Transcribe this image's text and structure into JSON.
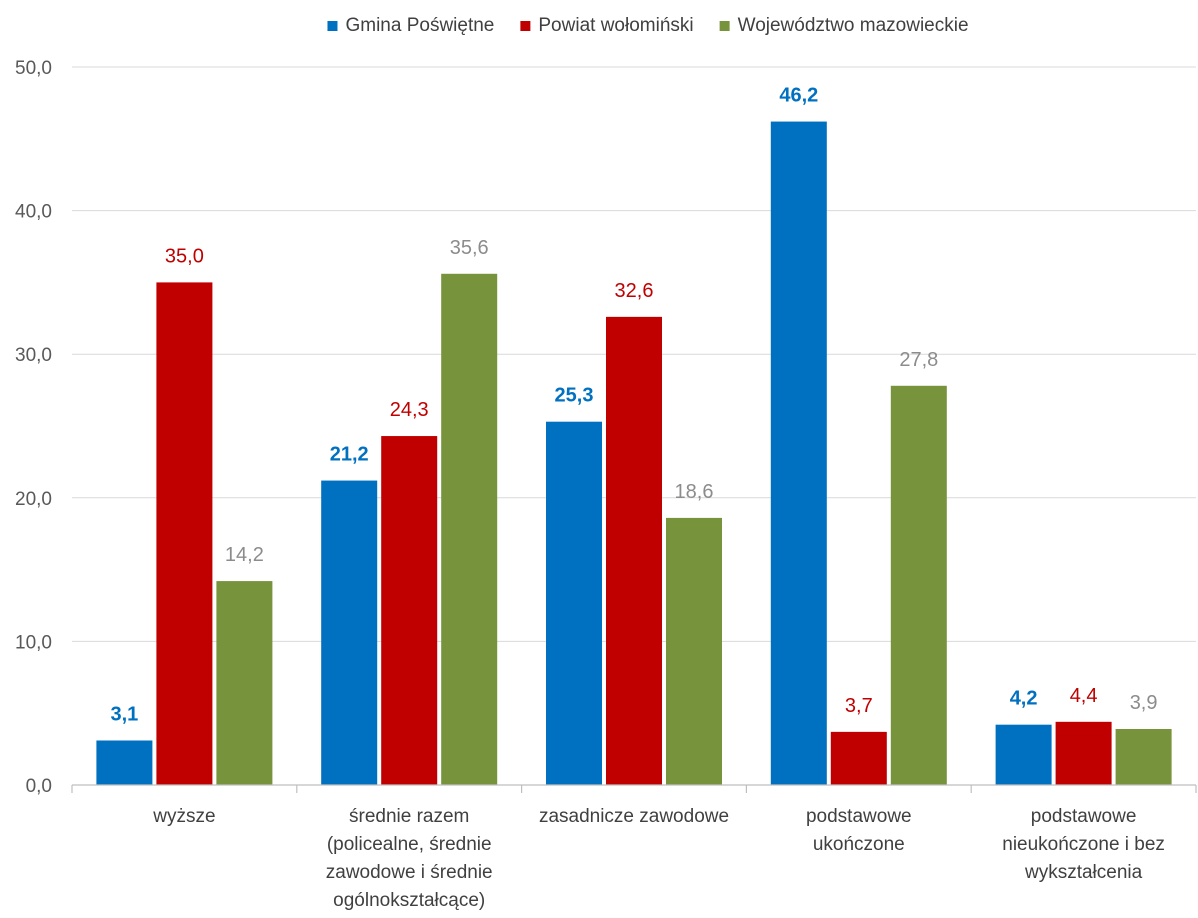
{
  "chart_data": {
    "type": "bar",
    "title": "",
    "xlabel": "",
    "ylabel": "",
    "ylim": [
      0,
      50
    ],
    "yticks": [
      "0,0",
      "10,0",
      "20,0",
      "30,0",
      "40,0",
      "50,0"
    ],
    "grid": true,
    "legend_position": "top",
    "categories": [
      [
        "wyższe"
      ],
      [
        "średnie razem",
        "(policealne, średnie",
        "zawodowe i średnie",
        "ogólnokształcące)"
      ],
      [
        "zasadnicze zawodowe"
      ],
      [
        "podstawowe",
        "ukończone"
      ],
      [
        "podstawowe",
        "nieukończone i bez",
        "wykształcenia"
      ]
    ],
    "series": [
      {
        "name": "Gmina Poświętne",
        "color": "#0070C0",
        "label_color": "#0070C0",
        "label_bold": true,
        "values": [
          3.1,
          21.2,
          25.3,
          46.2,
          4.2
        ],
        "labels": [
          "3,1",
          "21,2",
          "25,3",
          "46,2",
          "4,2"
        ]
      },
      {
        "name": "Powiat wołomiński",
        "color": "#C00000",
        "label_color": "#C00000",
        "label_bold": false,
        "values": [
          35.0,
          24.3,
          32.6,
          3.7,
          4.4
        ],
        "labels": [
          "35,0",
          "24,3",
          "32,6",
          "3,7",
          "4,4"
        ]
      },
      {
        "name": "Województwo mazowieckie",
        "color": "#77933C",
        "label_color": "#8C8C8C",
        "label_bold": false,
        "values": [
          14.2,
          35.6,
          18.6,
          27.8,
          3.9
        ],
        "labels": [
          "14,2",
          "35,6",
          "18,6",
          "27,8",
          "3,9"
        ]
      }
    ]
  }
}
